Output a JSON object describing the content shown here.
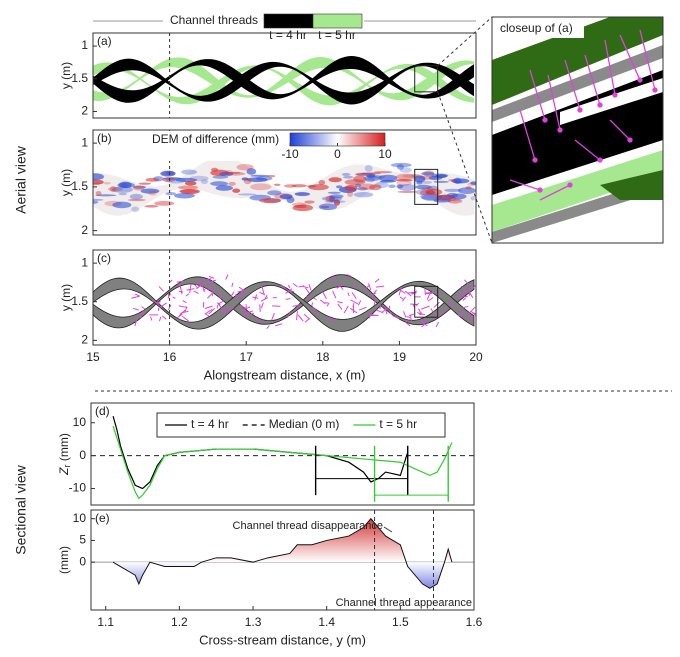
{
  "labels": {
    "aerial": "Aerial view",
    "sectional": "Sectional view",
    "closeup": "closeup of (a)"
  },
  "chart_data": [
    {
      "type": "map",
      "panel": "(a)",
      "ylabel": "y (m)",
      "xlim": [
        15,
        20
      ],
      "ylim": [
        0.8,
        2.1
      ],
      "yreverse": true,
      "yticks": [
        1,
        1.5,
        2
      ],
      "legend_title": "Channel threads",
      "legend": [
        {
          "name": "t = 4 hr",
          "color": "#000000"
        },
        {
          "name": "t = 5 hr",
          "color": "#a6e88f"
        }
      ],
      "vline": 16,
      "box": {
        "x": [
          19.2,
          19.5
        ],
        "y": [
          1.3,
          1.7
        ]
      }
    },
    {
      "type": "map",
      "panel": "(b)",
      "ylabel": "y (m)",
      "xlim": [
        15,
        20
      ],
      "ylim": [
        0.85,
        2.05
      ],
      "yreverse": true,
      "yticks": [
        1,
        1.5,
        2
      ],
      "colorbar": {
        "title": "DEM of difference (mm)",
        "clim": [
          -10,
          10
        ],
        "ticks": [
          -10,
          0,
          10
        ]
      },
      "vline": 16,
      "box": {
        "x": [
          19.2,
          19.5
        ],
        "y": [
          1.3,
          1.7
        ]
      }
    },
    {
      "type": "map",
      "panel": "(c)",
      "ylabel": "y (m)",
      "xlabel": "Alongstream distance, x (m)",
      "xlim": [
        15,
        20
      ],
      "ylim": [
        0.83,
        2.06
      ],
      "yreverse": true,
      "yticks": [
        1,
        1.5,
        2
      ],
      "xticks": [
        15,
        16,
        17,
        18,
        19,
        20
      ],
      "vline": 16,
      "box": {
        "x": [
          19.2,
          19.5
        ],
        "y": [
          1.3,
          1.7
        ]
      }
    },
    {
      "type": "line",
      "panel": "(d)",
      "ylabel": {
        "main": "Z",
        "sub": "r",
        "unit": " (mm)"
      },
      "xlim": [
        1.08,
        1.6
      ],
      "ylim": [
        -15,
        16
      ],
      "yticks": [
        -10,
        0,
        10
      ],
      "series": [
        {
          "name": "t = 4 hr",
          "color": "#000000",
          "x": [
            1.11,
            1.115,
            1.12,
            1.13,
            1.14,
            1.15,
            1.16,
            1.17,
            1.18,
            1.2,
            1.25,
            1.3,
            1.35,
            1.4,
            1.43,
            1.45,
            1.46,
            1.47,
            1.48,
            1.5,
            1.51
          ],
          "values": [
            12,
            8,
            3,
            -4,
            -9,
            -10,
            -8,
            -3,
            0,
            1,
            2,
            2,
            1,
            0,
            -2,
            -5,
            -8,
            -7,
            -5,
            -6,
            1
          ]
        },
        {
          "name": "Median (0 m)",
          "color": "#000000",
          "dash": true,
          "x": [
            1.08,
            1.6
          ],
          "values": [
            0,
            0
          ]
        },
        {
          "name": "t = 5 hr",
          "color": "#33cc33",
          "x": [
            1.11,
            1.12,
            1.13,
            1.14,
            1.145,
            1.15,
            1.16,
            1.17,
            1.18,
            1.2,
            1.25,
            1.3,
            1.35,
            1.4,
            1.45,
            1.5,
            1.52,
            1.54,
            1.55,
            1.56,
            1.57
          ],
          "values": [
            9,
            2,
            -5,
            -11,
            -13,
            -12,
            -9,
            -4,
            0,
            1,
            2,
            2,
            1,
            0,
            -1,
            -2,
            -4,
            -6,
            -5,
            -1,
            4
          ]
        }
      ],
      "spans": [
        {
          "color": "#000000",
          "x": [
            1.385,
            1.51
          ],
          "y": -7,
          "yrange": [
            -12,
            3
          ]
        },
        {
          "color": "#33cc33",
          "x": [
            1.465,
            1.565
          ],
          "y": -12,
          "yrange": [
            -14,
            3
          ]
        }
      ]
    },
    {
      "type": "area",
      "panel": "(e)",
      "ylabel": "(mm)",
      "xlabel": "Cross-stream distance, y (m)",
      "xlim": [
        1.08,
        1.6
      ],
      "ylim": [
        -11,
        12
      ],
      "yticks": [
        0,
        5,
        10
      ],
      "xticks": [
        1.1,
        1.2,
        1.3,
        1.4,
        1.5,
        1.6
      ],
      "x": [
        1.11,
        1.12,
        1.13,
        1.14,
        1.145,
        1.15,
        1.16,
        1.18,
        1.2,
        1.22,
        1.23,
        1.25,
        1.27,
        1.3,
        1.32,
        1.35,
        1.36,
        1.38,
        1.4,
        1.43,
        1.45,
        1.46,
        1.47,
        1.48,
        1.5,
        1.51,
        1.53,
        1.54,
        1.55,
        1.56,
        1.565,
        1.57
      ],
      "values": [
        0,
        -1,
        -2,
        -3,
        -5,
        -3,
        0,
        -1,
        -1,
        -1,
        0,
        1,
        1,
        0,
        1,
        2,
        4,
        4,
        5,
        6,
        8,
        10,
        8,
        6,
        4,
        -1,
        -5,
        -6,
        -5,
        0,
        3,
        0
      ],
      "vlines": [
        1.465,
        1.545
      ],
      "annotations": [
        "Channel thread disappearance",
        "Channel thread appearance"
      ]
    }
  ]
}
